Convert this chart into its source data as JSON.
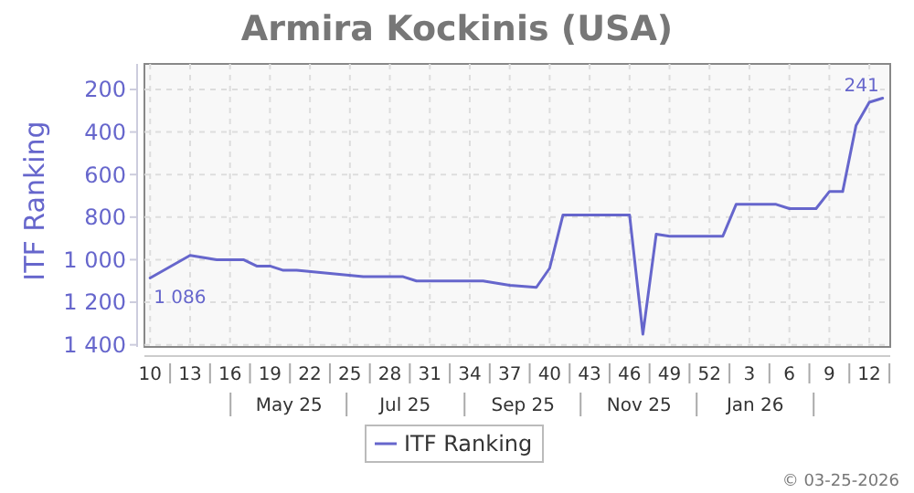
{
  "chart_data": {
    "type": "line",
    "title": "Armira Kockinis (USA)",
    "ylabel": "ITF Ranking",
    "x": [
      "2025-03-03",
      "2025-03-24",
      "2025-04-07",
      "2025-04-21",
      "2025-04-28",
      "2025-05-05",
      "2025-05-12",
      "2025-05-19",
      "2025-06-23",
      "2025-07-14",
      "2025-07-21",
      "2025-07-28",
      "2025-08-11",
      "2025-08-25",
      "2025-09-08",
      "2025-09-22",
      "2025-09-29",
      "2025-10-06",
      "2025-10-20",
      "2025-10-27",
      "2025-11-10",
      "2025-11-17",
      "2025-11-24",
      "2025-12-01",
      "2025-12-15",
      "2025-12-29",
      "2026-01-05",
      "2026-01-26",
      "2026-02-02",
      "2026-02-16",
      "2026-02-23",
      "2026-03-02",
      "2026-03-09",
      "2026-03-16",
      "2026-03-23"
    ],
    "series": [
      {
        "name": "ITF Ranking",
        "color": "#6666cc",
        "values": [
          1086,
          980,
          1000,
          1000,
          1030,
          1030,
          1050,
          1050,
          1080,
          1080,
          1100,
          1100,
          1100,
          1100,
          1120,
          1130,
          1040,
          790,
          790,
          790,
          790,
          1350,
          880,
          890,
          890,
          890,
          740,
          740,
          760,
          760,
          680,
          680,
          370,
          260,
          241
        ],
        "value_labels": [
          "1 086",
          null,
          null,
          null,
          null,
          null,
          null,
          null,
          null,
          null,
          null,
          null,
          null,
          null,
          null,
          null,
          null,
          null,
          null,
          null,
          null,
          null,
          null,
          null,
          null,
          null,
          null,
          null,
          null,
          null,
          null,
          null,
          null,
          null,
          "241"
        ]
      }
    ],
    "xlim": [
      "2025-02-28",
      "2026-03-27"
    ],
    "xticks": [
      {
        "value": "2025-03-03",
        "label": "10"
      },
      {
        "value": "2025-03-24",
        "label": "13"
      },
      {
        "value": "2025-04-14",
        "label": "16"
      },
      {
        "value": "2025-05-05",
        "label": "19"
      },
      {
        "value": "2025-05-26",
        "label": "22"
      },
      {
        "value": "2025-06-16",
        "label": "25"
      },
      {
        "value": "2025-07-07",
        "label": "28"
      },
      {
        "value": "2025-07-28",
        "label": "31"
      },
      {
        "value": "2025-08-18",
        "label": "34"
      },
      {
        "value": "2025-09-08",
        "label": "37"
      },
      {
        "value": "2025-09-29",
        "label": "40"
      },
      {
        "value": "2025-10-20",
        "label": "43"
      },
      {
        "value": "2025-11-10",
        "label": "46"
      },
      {
        "value": "2025-12-01",
        "label": "49"
      },
      {
        "value": "2025-12-22",
        "label": "52"
      },
      {
        "value": "2026-01-12",
        "label": "3"
      },
      {
        "value": "2026-02-02",
        "label": "6"
      },
      {
        "value": "2026-02-23",
        "label": "9"
      },
      {
        "value": "2026-03-16",
        "label": "12"
      }
    ],
    "ylim": [
      1410,
      80
    ],
    "x2lim": [
      "2025-02-28",
      "2026-03-27"
    ],
    "x2ticks": [
      {
        "value": "2025-05-15",
        "label": "May 25"
      },
      {
        "value": "2025-07-15",
        "label": "Jul 25"
      },
      {
        "value": "2025-09-15",
        "label": "Sep 25"
      },
      {
        "value": "2025-11-15",
        "label": "Nov 25"
      },
      {
        "value": "2026-01-15",
        "label": "Jan 26"
      }
    ],
    "yticks": [
      200,
      400,
      600,
      800,
      {
        "value": 1000,
        "label": "1 000"
      },
      {
        "value": 1200,
        "label": "1 200"
      },
      {
        "value": 1400,
        "label": "1 400"
      }
    ],
    "grid": true,
    "legend": "bottom",
    "marker": "none",
    "line_style": "solid",
    "annotations": [
      "© 03-25-2026"
    ]
  }
}
